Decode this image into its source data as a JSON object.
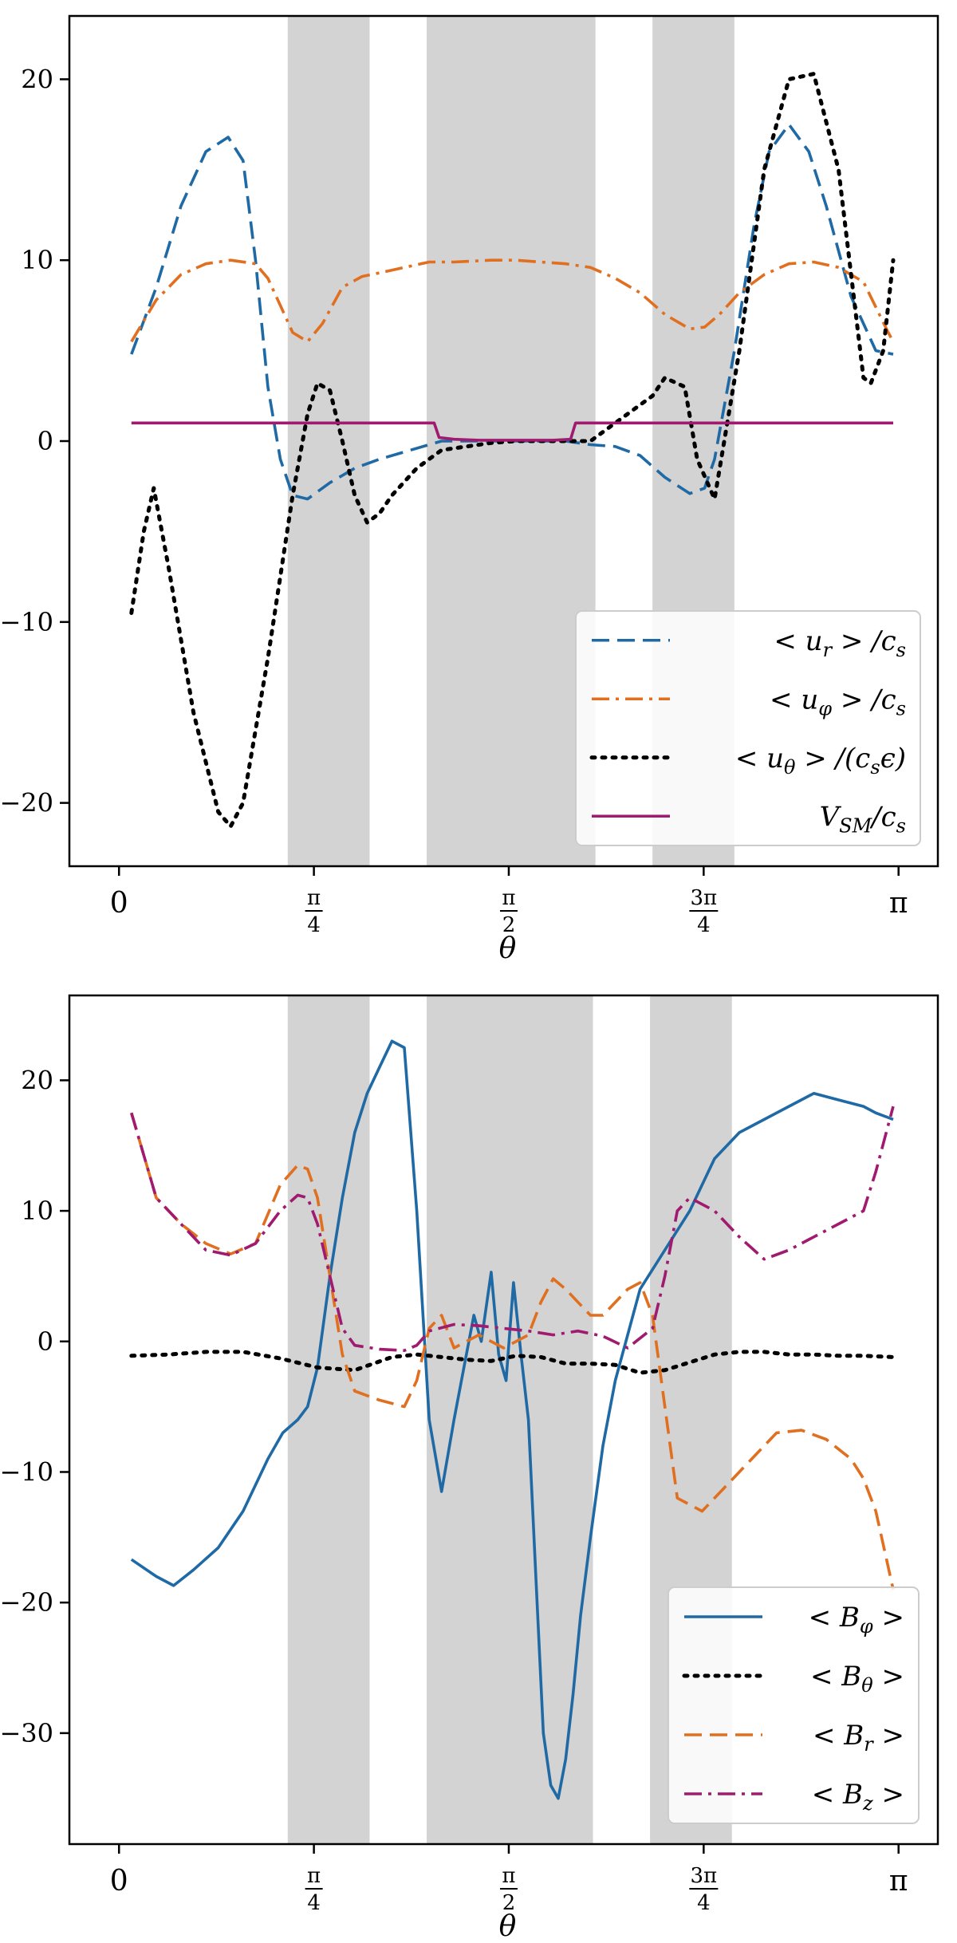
{
  "chart_data": [
    {
      "type": "line",
      "xlabel": "θ",
      "ylabel": "",
      "xlim": [
        -0.2,
        3.3
      ],
      "ylim": [
        -23.5,
        23.5
      ],
      "xticks": [
        {
          "value": 0,
          "label": "0"
        },
        {
          "value": 0.7854,
          "label": "π/4",
          "num": "π",
          "den": "4"
        },
        {
          "value": 1.5708,
          "label": "π/2",
          "num": "π",
          "den": "2"
        },
        {
          "value": 2.3562,
          "label": "3π/4",
          "num": "3π",
          "den": "4"
        },
        {
          "value": 3.1416,
          "label": "π"
        }
      ],
      "yticks": [
        {
          "value": 20,
          "label": "20"
        },
        {
          "value": 10,
          "label": "10"
        },
        {
          "value": 0,
          "label": "0"
        },
        {
          "value": -10,
          "label": "−10"
        },
        {
          "value": -20,
          "label": "−20"
        }
      ],
      "shaded_bands": [
        [
          0.68,
          1.01
        ],
        [
          1.24,
          1.92
        ],
        [
          2.15,
          2.48
        ]
      ],
      "legend_position": "lower-right",
      "series": [
        {
          "name": "< u_r > / c_s",
          "legend": {
            "pre": "< u",
            "sub": "r",
            "post": " > /c",
            "sub2": "s",
            "post2": ""
          },
          "color": "#1f6aa5",
          "style": "dashed",
          "x": [
            0.05,
            0.15,
            0.25,
            0.35,
            0.44,
            0.5,
            0.55,
            0.6,
            0.65,
            0.7,
            0.76,
            0.85,
            0.95,
            1.05,
            1.15,
            1.25,
            1.3,
            1.4,
            1.5,
            1.6,
            1.7,
            1.8,
            1.9,
            2.0,
            2.1,
            2.2,
            2.3,
            2.36,
            2.4,
            2.48,
            2.56,
            2.62,
            2.7,
            2.78,
            2.85,
            2.95,
            3.05,
            3.12
          ],
          "y": [
            4.8,
            8.5,
            13,
            16,
            16.8,
            15.5,
            10,
            3,
            -1,
            -3,
            -3.2,
            -2.3,
            -1.5,
            -1,
            -0.6,
            -0.2,
            0,
            0,
            0,
            0,
            0,
            0,
            -0.2,
            -0.3,
            -0.8,
            -2,
            -2.9,
            -2.6,
            -1,
            5,
            12,
            16,
            17.5,
            16,
            13,
            8,
            5,
            4.8
          ]
        },
        {
          "name": "< u_φ > / c_s",
          "legend": {
            "pre": "< u",
            "sub": "φ",
            "post": " > /c",
            "sub2": "s",
            "post2": ""
          },
          "color": "#e07020",
          "style": "dashdot",
          "x": [
            0.05,
            0.15,
            0.25,
            0.35,
            0.45,
            0.55,
            0.6,
            0.65,
            0.7,
            0.76,
            0.82,
            0.9,
            0.98,
            1.05,
            1.15,
            1.25,
            1.35,
            1.5,
            1.6,
            1.7,
            1.8,
            1.9,
            2.0,
            2.1,
            2.2,
            2.3,
            2.36,
            2.42,
            2.5,
            2.6,
            2.7,
            2.8,
            2.9,
            3.0,
            3.1,
            3.12
          ],
          "y": [
            5.5,
            7.8,
            9.2,
            9.8,
            10,
            9.8,
            9,
            7.5,
            6,
            5.5,
            6.5,
            8.5,
            9.1,
            9.3,
            9.6,
            9.9,
            9.9,
            10,
            10,
            9.9,
            9.8,
            9.6,
            9,
            8.2,
            7,
            6.2,
            6.3,
            7,
            8.2,
            9.2,
            9.8,
            9.9,
            9.6,
            8.8,
            6,
            5.5
          ]
        },
        {
          "name": "< u_θ > / (c_s ε)",
          "legend": {
            "pre": "< u",
            "sub": "θ",
            "post": " > /(c",
            "sub2": "s",
            "post2": "ϵ)"
          },
          "color": "#000000",
          "style": "dotted",
          "x": [
            0.05,
            0.1,
            0.14,
            0.2,
            0.3,
            0.4,
            0.45,
            0.5,
            0.6,
            0.7,
            0.76,
            0.8,
            0.85,
            0.9,
            0.95,
            1.0,
            1.05,
            1.1,
            1.2,
            1.3,
            1.4,
            1.5,
            1.6,
            1.7,
            1.8,
            1.9,
            2.0,
            2.1,
            2.15,
            2.2,
            2.28,
            2.33,
            2.4,
            2.5,
            2.6,
            2.7,
            2.8,
            2.9,
            3.0,
            3.03,
            3.08,
            3.12
          ],
          "y": [
            -9.5,
            -5,
            -2.6,
            -7,
            -15,
            -20.5,
            -21.3,
            -20,
            -12,
            -3,
            1.5,
            3.2,
            2.8,
            0,
            -3,
            -4.5,
            -4,
            -3,
            -1.5,
            -0.5,
            -0.3,
            -0.1,
            0,
            0,
            0,
            0,
            1,
            2,
            2.5,
            3.5,
            3,
            -1,
            -3.2,
            5,
            15,
            20,
            20.3,
            15,
            3.5,
            3.2,
            5,
            10
          ]
        },
        {
          "name": "V_SM / c_s",
          "legend": {
            "pre": "V",
            "sub": "SM",
            "post": "/c",
            "sub2": "s",
            "post2": ""
          },
          "color": "#a01a70",
          "style": "solid",
          "x": [
            0.05,
            1.27,
            1.29,
            1.35,
            1.45,
            1.55,
            1.65,
            1.75,
            1.82,
            1.84,
            3.12
          ],
          "y": [
            1,
            1,
            0.2,
            0.1,
            0.05,
            0.05,
            0.05,
            0.05,
            0.1,
            1,
            1
          ]
        }
      ]
    },
    {
      "type": "line",
      "xlabel": "θ",
      "ylabel": "",
      "xlim": [
        -0.2,
        3.3
      ],
      "ylim": [
        -38.5,
        26.5
      ],
      "xticks": [
        {
          "value": 0,
          "label": "0"
        },
        {
          "value": 0.7854,
          "label": "π/4",
          "num": "π",
          "den": "4"
        },
        {
          "value": 1.5708,
          "label": "π/2",
          "num": "π",
          "den": "2"
        },
        {
          "value": 2.3562,
          "label": "3π/4",
          "num": "3π",
          "den": "4"
        },
        {
          "value": 3.1416,
          "label": "π"
        }
      ],
      "yticks": [
        {
          "value": 20,
          "label": "20"
        },
        {
          "value": 10,
          "label": "10"
        },
        {
          "value": 0,
          "label": "0"
        },
        {
          "value": -10,
          "label": "−10"
        },
        {
          "value": -20,
          "label": "−20"
        },
        {
          "value": -30,
          "label": "−30"
        }
      ],
      "shaded_bands": [
        [
          0.68,
          1.01
        ],
        [
          1.24,
          1.91
        ],
        [
          2.14,
          2.47
        ]
      ],
      "legend_position": "lower-right",
      "series": [
        {
          "name": "< B_φ >",
          "legend": {
            "pre": "< B",
            "sub": "φ",
            "post": " >",
            "sub2": "",
            "post2": ""
          },
          "color": "#1f6aa5",
          "style": "solid",
          "x": [
            0.05,
            0.15,
            0.22,
            0.3,
            0.4,
            0.5,
            0.6,
            0.66,
            0.72,
            0.76,
            0.8,
            0.85,
            0.9,
            0.95,
            1.0,
            1.05,
            1.1,
            1.15,
            1.2,
            1.25,
            1.3,
            1.35,
            1.4,
            1.43,
            1.46,
            1.5,
            1.53,
            1.56,
            1.59,
            1.62,
            1.65,
            1.68,
            1.71,
            1.74,
            1.77,
            1.8,
            1.83,
            1.86,
            1.9,
            1.95,
            2.0,
            2.1,
            2.2,
            2.3,
            2.4,
            2.5,
            2.6,
            2.7,
            2.8,
            2.9,
            3.0,
            3.05,
            3.12
          ],
          "y": [
            -16.7,
            -18,
            -18.7,
            -17.5,
            -15.8,
            -13,
            -9,
            -7,
            -6,
            -5,
            -2,
            5,
            11,
            16,
            19,
            21,
            23,
            22.5,
            10,
            -6,
            -11.5,
            -6,
            -1,
            2,
            0,
            5.3,
            -1,
            -3,
            4.5,
            -1,
            -6,
            -18,
            -30,
            -34,
            -35,
            -32,
            -27,
            -21,
            -15,
            -8,
            -3,
            4,
            7,
            10,
            14,
            16,
            17,
            18,
            19,
            18.5,
            18,
            17.5,
            17
          ]
        },
        {
          "name": "< B_θ >",
          "legend": {
            "pre": "< B",
            "sub": "θ",
            "post": " >",
            "sub2": "",
            "post2": ""
          },
          "color": "#000000",
          "style": "dotted",
          "x": [
            0.05,
            0.2,
            0.35,
            0.5,
            0.65,
            0.8,
            0.95,
            1.1,
            1.2,
            1.3,
            1.4,
            1.5,
            1.6,
            1.7,
            1.8,
            1.9,
            2.0,
            2.1,
            2.2,
            2.3,
            2.4,
            2.5,
            2.6,
            2.7,
            2.8,
            2.9,
            3.0,
            3.12
          ],
          "y": [
            -1.1,
            -1.0,
            -0.8,
            -0.8,
            -1.3,
            -2.0,
            -2.2,
            -1.2,
            -1.0,
            -1.2,
            -1.4,
            -1.5,
            -1.1,
            -1.2,
            -1.7,
            -1.7,
            -1.8,
            -2.4,
            -2.2,
            -1.6,
            -1.0,
            -0.8,
            -0.8,
            -1.0,
            -1.0,
            -1.1,
            -1.1,
            -1.2
          ]
        },
        {
          "name": "< B_r >",
          "legend": {
            "pre": "< B",
            "sub": "r",
            "post": " >",
            "sub2": "",
            "post2": ""
          },
          "color": "#e07020",
          "style": "dashed",
          "x": [
            0.05,
            0.15,
            0.25,
            0.35,
            0.45,
            0.55,
            0.65,
            0.72,
            0.76,
            0.8,
            0.85,
            0.9,
            0.95,
            1.05,
            1.15,
            1.2,
            1.25,
            1.3,
            1.35,
            1.4,
            1.45,
            1.5,
            1.55,
            1.6,
            1.65,
            1.7,
            1.75,
            1.8,
            1.85,
            1.9,
            1.95,
            2.0,
            2.05,
            2.1,
            2.15,
            2.2,
            2.25,
            2.35,
            2.45,
            2.55,
            2.65,
            2.75,
            2.85,
            2.95,
            3.0,
            3.05,
            3.12
          ],
          "y": [
            17.5,
            11,
            9,
            7.5,
            6.7,
            7.5,
            12,
            13.5,
            13.2,
            11,
            5,
            -1,
            -3.8,
            -4.5,
            -5,
            -3,
            1,
            2,
            -0.5,
            0,
            0.5,
            0,
            -0.5,
            0,
            0.5,
            3,
            4.8,
            4,
            3,
            2,
            2,
            3,
            4,
            4.5,
            2,
            -5,
            -12,
            -13,
            -11,
            -9,
            -7,
            -6.8,
            -7.5,
            -9,
            -10.5,
            -13,
            -19
          ]
        },
        {
          "name": "< B_z >",
          "legend": {
            "pre": "< B",
            "sub": "z",
            "post": " >",
            "sub2": "",
            "post2": ""
          },
          "color": "#a01a70",
          "style": "dashdot",
          "x": [
            0.05,
            0.15,
            0.25,
            0.35,
            0.45,
            0.55,
            0.65,
            0.72,
            0.76,
            0.8,
            0.85,
            0.9,
            0.95,
            1.05,
            1.15,
            1.2,
            1.25,
            1.35,
            1.45,
            1.55,
            1.65,
            1.75,
            1.85,
            1.95,
            2.05,
            2.15,
            2.2,
            2.25,
            2.3,
            2.4,
            2.5,
            2.6,
            2.7,
            2.8,
            2.9,
            3.0,
            3.05,
            3.12
          ],
          "y": [
            17.5,
            11,
            9,
            7,
            6.6,
            7.5,
            10,
            11.2,
            11,
            9,
            5,
            1,
            -0.3,
            -0.6,
            -0.7,
            -0.3,
            0.8,
            1.3,
            1.2,
            1,
            0.8,
            0.5,
            0.8,
            0.4,
            -0.5,
            1,
            5,
            10,
            11,
            10,
            8,
            6.3,
            7,
            8,
            9,
            10,
            13,
            18
          ]
        }
      ]
    }
  ]
}
